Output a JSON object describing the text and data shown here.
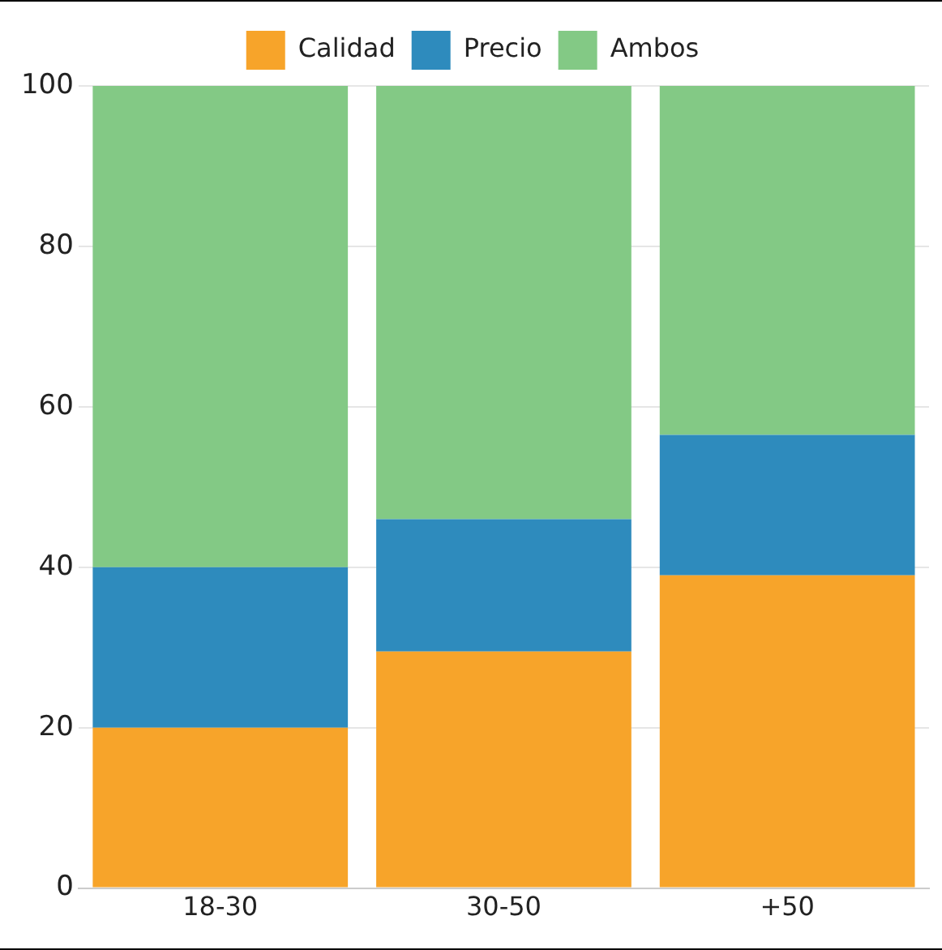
{
  "chart_data": {
    "type": "bar",
    "stacked": true,
    "categories": [
      "18-30",
      "30-50",
      "+50"
    ],
    "series": [
      {
        "name": "Calidad",
        "color": "#f7a42a",
        "values": [
          20,
          29.5,
          39
        ]
      },
      {
        "name": "Precio",
        "color": "#2e8bbd",
        "values": [
          20,
          16.5,
          17.5
        ]
      },
      {
        "name": "Ambos",
        "color": "#83c985",
        "values": [
          60,
          54,
          43.5
        ]
      }
    ],
    "ylim": [
      0,
      100
    ],
    "yticks": [
      0,
      20,
      40,
      60,
      80,
      100
    ],
    "grid": "y",
    "legend": "top"
  }
}
